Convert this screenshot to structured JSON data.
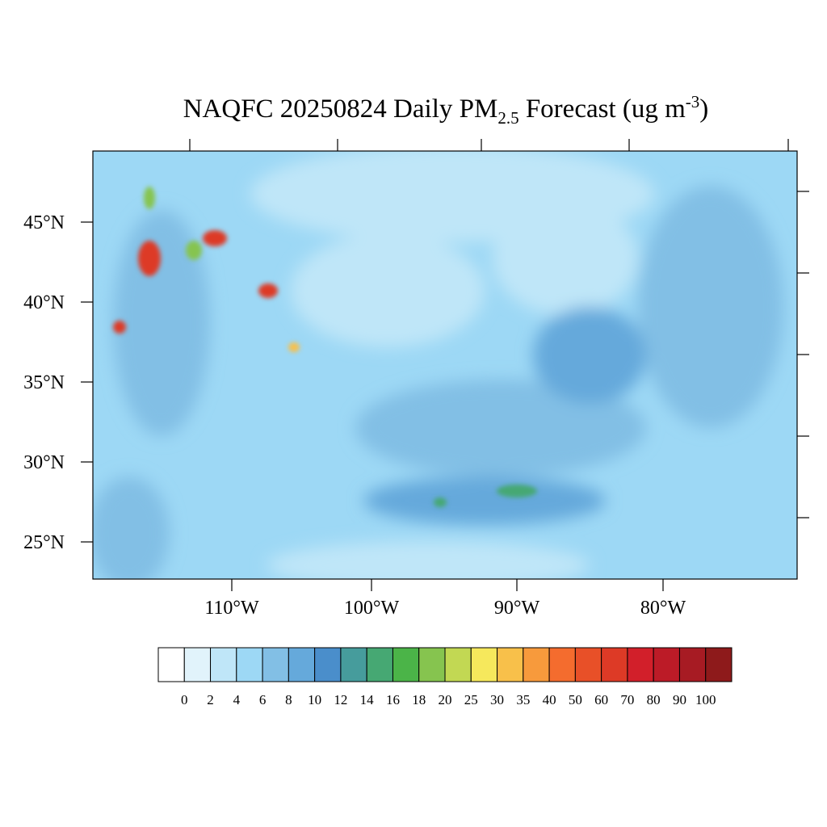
{
  "title": {
    "main": "NAQFC 20250824 Daily PM",
    "sub": "2.5",
    "after": " Forecast (ug m",
    "sup": "-3",
    "end": ")"
  },
  "map": {
    "lat_labels": [
      "45°N",
      "40°N",
      "35°N",
      "30°N",
      "25°N"
    ],
    "lon_labels": [
      "110°W",
      "100°W",
      "90°W",
      "80°W"
    ]
  },
  "colorbar": {
    "levels": [
      0,
      2,
      4,
      6,
      8,
      10,
      12,
      14,
      16,
      18,
      20,
      25,
      30,
      35,
      40,
      50,
      60,
      70,
      80,
      90,
      100
    ],
    "colors": [
      "#ffffff",
      "#e1f3fb",
      "#bfe6f8",
      "#9dd8f5",
      "#82bfe5",
      "#65a9db",
      "#4a8ecb",
      "#469c9c",
      "#46a873",
      "#4bb448",
      "#86c44f",
      "#c2d853",
      "#f6e85c",
      "#f8c04a",
      "#f79a3c",
      "#f46c2e",
      "#e85028",
      "#dd3a26",
      "#d21f2a",
      "#bc1b27",
      "#a71b23",
      "#8e1a1b"
    ]
  }
}
